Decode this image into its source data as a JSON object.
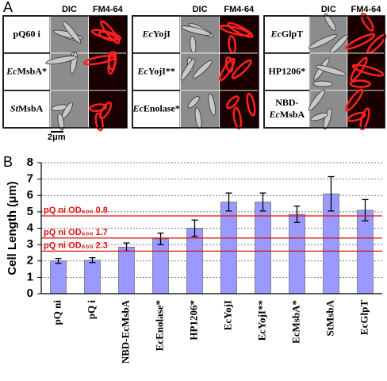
{
  "panel_a": {
    "label": "A",
    "scale_bar": "2μm",
    "groups": [
      {
        "headers": [
          "DIC",
          "FM4-64"
        ],
        "rows": [
          [
            [
              {
                "text": "pQ60 i"
              }
            ]
          ],
          [
            [
              {
                "text": "Ec",
                "italic": true
              },
              {
                "text": "MsbA*"
              }
            ]
          ],
          [
            [
              {
                "text": "St",
                "italic": true
              },
              {
                "text": "MsbA"
              }
            ]
          ]
        ]
      },
      {
        "headers": [
          "DIC",
          "FM4-64"
        ],
        "rows": [
          [
            [
              {
                "text": "Ec",
                "italic": true
              },
              {
                "text": "YojI"
              }
            ]
          ],
          [
            [
              {
                "text": "Ec",
                "italic": true
              },
              {
                "text": "YojI**"
              }
            ]
          ],
          [
            [
              {
                "text": "Ec",
                "italic": true
              },
              {
                "text": "Enolase*"
              }
            ]
          ]
        ]
      },
      {
        "headers": [
          "DIC",
          "FM4-64"
        ],
        "rows": [
          [
            [
              {
                "text": "Ec",
                "italic": true
              },
              {
                "text": "GlpT"
              }
            ]
          ],
          [
            [
              {
                "text": "HP1206*"
              }
            ]
          ],
          [
            [
              {
                "text": "NBD-"
              }
            ],
            [
              {
                "text": "Ec",
                "italic": true
              },
              {
                "text": "MsbA"
              }
            ]
          ]
        ]
      }
    ]
  },
  "chart_data": {
    "type": "bar",
    "panel_label": "B",
    "y_label": "Cell Length (μm)",
    "categories": [
      "pQ ni",
      "pQ i",
      "NBD-EcMsbA",
      "EcEnolase*",
      "HP1206*",
      "EcYojI",
      "EcYojI**",
      "EcMsbA*",
      "StMsbA",
      "EcGlpT"
    ],
    "values": [
      2.0,
      2.05,
      2.85,
      3.35,
      4.0,
      5.6,
      5.6,
      4.85,
      6.1,
      5.1
    ],
    "errors": [
      0.15,
      0.15,
      0.25,
      0.35,
      0.5,
      0.55,
      0.55,
      0.5,
      1.05,
      0.65
    ],
    "color": "#9999ff",
    "ylim": [
      0,
      8
    ],
    "yticks": [
      0,
      1,
      2,
      3,
      4,
      5,
      6,
      7,
      8
    ],
    "grid": true,
    "reference_lines": [
      {
        "value": 4.75,
        "label": "pQ ni OD₆₀₀ 0.8",
        "color": "#e01010"
      },
      {
        "value": 3.4,
        "label": "pQ ni OD₆₀₀ 1.7",
        "color": "#e01010"
      },
      {
        "value": 2.6,
        "label": "pQ ni OD₆₀₀ 2.3",
        "color": "#e01010"
      }
    ]
  }
}
